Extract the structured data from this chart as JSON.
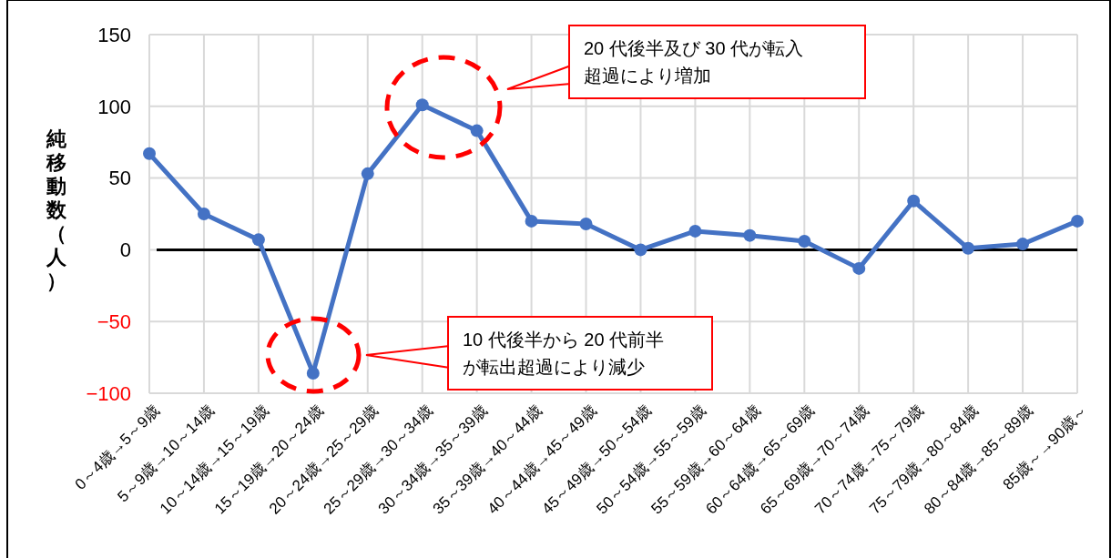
{
  "chart_data": {
    "type": "line",
    "ylabel": "純移動数（人）",
    "categories": [
      "0～4歳→5～9歳",
      "5～9歳→10～14歳",
      "10～14歳→15～19歳",
      "15～19歳→20～24歳",
      "20～24歳→25～29歳",
      "25～29歳→30～34歳",
      "30～34歳→35～39歳",
      "35～39歳→40～44歳",
      "40～44歳→45～49歳",
      "45～49歳→50～54歳",
      "50～54歳→55～59歳",
      "55～59歳→60～64歳",
      "60～64歳→65～69歳",
      "65～69歳→70～74歳",
      "70～74歳→75～79歳",
      "75～79歳→80～84歳",
      "80～84歳→85～89歳",
      "85歳～→90歳～"
    ],
    "series": [
      {
        "color": "#4472c4",
        "values": [
          67,
          25,
          7,
          -86,
          53,
          101,
          83,
          20,
          18,
          0,
          13,
          10,
          6,
          -13,
          34,
          1,
          4,
          20
        ]
      }
    ],
    "ylim": [
      -100,
      150
    ],
    "yticks": [
      -100,
      -50,
      0,
      50,
      100,
      150
    ],
    "grid": true,
    "marker": "circle",
    "line_style": "solid",
    "ref_lines": [
      {
        "axis": "y",
        "value": 0,
        "color": "#000000"
      }
    ],
    "annotations": [
      "20 代後半及び 30 代が転入超過により増加",
      "10 代後半から 20 代前半が転出超過により減少"
    ]
  }
}
